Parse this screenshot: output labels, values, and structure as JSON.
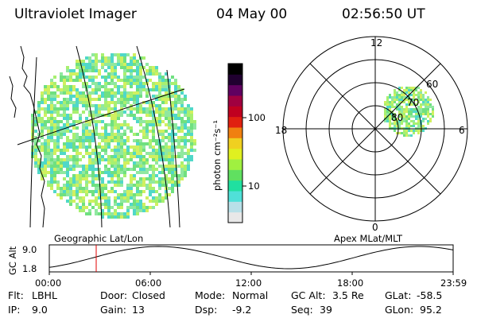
{
  "header": {
    "title": "Ultraviolet Imager",
    "date": "04 May 00",
    "time": "02:56:50 UT"
  },
  "colorbar": {
    "label": "photon cm⁻²s⁻¹",
    "ticks": [
      "100",
      "10"
    ],
    "colors": [
      "#e8e8e8",
      "#b8e0e8",
      "#50e0d8",
      "#20e0a0",
      "#60e060",
      "#a0f040",
      "#e0f020",
      "#f0d020",
      "#f08010",
      "#e02010",
      "#c00020",
      "#a00040",
      "#600060",
      "#200030",
      "#000000"
    ]
  },
  "geo_panel": {
    "caption": "Geographic Lat/Lon",
    "fill_colors": [
      "#70e080",
      "#a8f070",
      "#d0f060",
      "#50d8c8",
      "#90e8a0"
    ]
  },
  "polar_panel": {
    "caption": "Apex MLat/MLT",
    "mlt_labels": {
      "top": "12",
      "bottom": "0",
      "left": "18",
      "right": "6"
    },
    "lat_labels": [
      "60",
      "70",
      "80"
    ]
  },
  "altitude_strip": {
    "ylabel": "GC Alt",
    "y_ticks": [
      "9.0",
      "1.8"
    ],
    "x_ticks": [
      "00:00",
      "06:00",
      "12:00",
      "18:00",
      "23:59"
    ],
    "current_time_marker_color": "#e00000"
  },
  "info": {
    "flt_label": "Flt:",
    "flt_value": "LBHL",
    "ip_label": "IP:",
    "ip_value": "9.0",
    "door_label": "Door:",
    "door_value": "Closed",
    "gain_label": "Gain:",
    "gain_value": "13",
    "mode_label": "Mode:",
    "mode_value": "Normal",
    "dsp_label": "Dsp:",
    "dsp_value": "-9.2",
    "gcalt_label": "GC Alt:",
    "gcalt_value": "3.5 Re",
    "seq_label": "Seq:",
    "seq_value": "39",
    "glat_label": "GLat:",
    "glat_value": "-58.5",
    "glon_label": "GLon:",
    "glon_value": "95.2"
  }
}
